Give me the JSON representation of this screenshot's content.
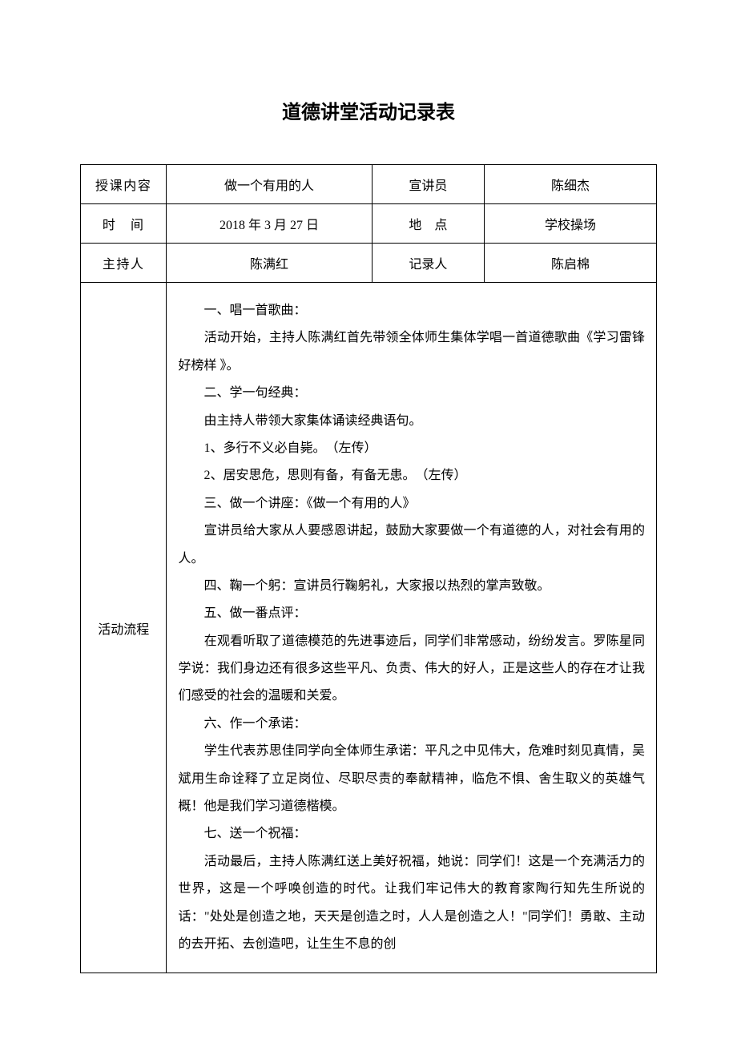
{
  "title": "道德讲堂活动记录表",
  "headers": {
    "row1": {
      "label1": "授课内容",
      "value1": "做一个有用的人",
      "label2": "宣讲员",
      "value2": "陈细杰"
    },
    "row2": {
      "label1": "时　间",
      "value1": "2018 年 3 月 27 日",
      "label2": "地　点",
      "value2": "学校操场"
    },
    "row3": {
      "label1": "主持人",
      "value1": "陈满红",
      "label2": "记录人",
      "value2": "陈启棉"
    }
  },
  "process": {
    "label": "活动流程",
    "lines": [
      {
        "cls": "indent-1",
        "text": "一、唱一首歌曲："
      },
      {
        "cls": "indent-0",
        "text": "　　活动开始，主持人陈满红首先带领全体师生集体学唱一首道德歌曲《学习雷锋好榜样 》。"
      },
      {
        "cls": "indent-1",
        "text": "二、学一句经典："
      },
      {
        "cls": "indent-1",
        "text": "由主持人带领大家集体诵读经典语句。"
      },
      {
        "cls": "indent-1",
        "text": "1、多行不义必自毙。　（左传）"
      },
      {
        "cls": "indent-1",
        "text": "2、居安思危，思则有备，有备无患。　（左传）"
      },
      {
        "cls": "indent-1",
        "text": "三、做一个讲座：《做一个有用的人》"
      },
      {
        "cls": "indent-0",
        "text": "　　宣讲员给大家从人要感恩讲起，鼓励大家要做一个有道德的人，对社会有用的人。"
      },
      {
        "cls": "indent-1",
        "text": "四、鞠一个躬：宣讲员行鞠躬礼，大家报以热烈的掌声致敬。"
      },
      {
        "cls": "indent-1",
        "text": "五、做一番点评："
      },
      {
        "cls": "indent-0",
        "text": "　　在观看听取了道德模范的先进事迹后，同学们非常感动，纷纷发言。罗陈星同学说：我们身边还有很多这些平凡、负责、伟大的好人，正是这些人的存在才让我们感受的社会的温暖和关爱。"
      },
      {
        "cls": "indent-1",
        "text": "六、作一个承诺："
      },
      {
        "cls": "indent-0",
        "text": "　　学生代表苏思佳同学向全体师生承诺：平凡之中见伟大，危难时刻见真情，吴斌用生命诠释了立足岗位、尽职尽责的奉献精神，临危不惧、舍生取义的英雄气概！他是我们学习道德楷模。"
      },
      {
        "cls": "indent-1",
        "text": "七、送一个祝福："
      },
      {
        "cls": "indent-0",
        "text": "　　活动最后，主持人陈满红送上美好祝福，她说：同学们！这是一个充满活力的世界，这是一个呼唤创造的时代。让我们牢记伟大的教育家陶行知先生所说的话：\"处处是创造之地，天天是创造之时，人人是创造之人！\"同学们！勇敢、主动的去开拓、去创造吧，让生生不息的创"
      }
    ]
  },
  "style": {
    "background": "#ffffff",
    "border_color": "#000000",
    "title_fontsize": 24,
    "body_fontsize": 16,
    "line_height": 2.15
  }
}
